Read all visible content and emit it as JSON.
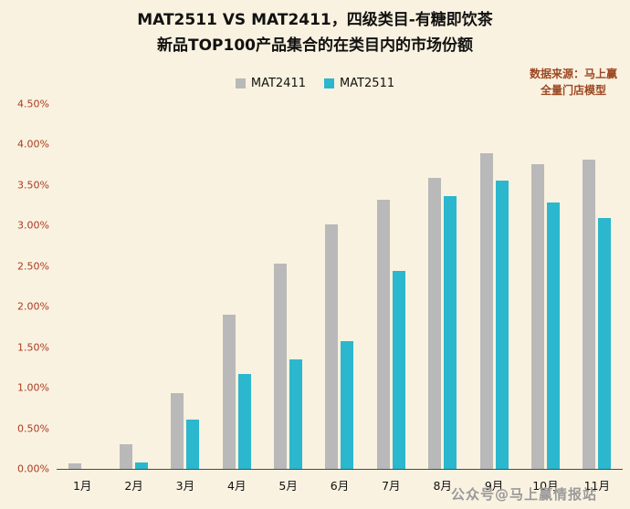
{
  "title": {
    "line1": "MAT2511 VS MAT2411，四级类目-有糖即饮茶",
    "line2": "新品TOP100产品集合的在类目内的市场份额"
  },
  "source": {
    "line1": "数据来源：马上赢",
    "line2": "全量门店模型"
  },
  "legend": [
    {
      "label": "MAT2411",
      "color": "#b9b9b9"
    },
    {
      "label": "MAT2511",
      "color": "#2bb7cd"
    }
  ],
  "watermark": "公众号@马上赢情报站",
  "colors": {
    "background": "#faf2e0",
    "bar_mat2411": "#b9b9b9",
    "bar_mat2511": "#2bb7cd",
    "axis_label": "#aa3a22",
    "source_text": "#9c4722",
    "title_text": "#111111"
  },
  "chart_data": {
    "type": "bar",
    "title": "MAT2511 VS MAT2411，四级类目-有糖即饮茶 新品TOP100产品集合的在类目内的市场份额",
    "categories": [
      "1月",
      "2月",
      "3月",
      "4月",
      "5月",
      "6月",
      "7月",
      "8月",
      "9月",
      "10月",
      "11月"
    ],
    "series": [
      {
        "name": "MAT2411",
        "color": "#b9b9b9",
        "values": [
          0.07,
          0.3,
          0.93,
          1.9,
          2.53,
          3.02,
          3.32,
          3.59,
          3.89,
          3.76,
          3.81
        ]
      },
      {
        "name": "MAT2511",
        "color": "#2bb7cd",
        "values": [
          0.0,
          0.08,
          0.61,
          1.17,
          1.35,
          1.57,
          2.44,
          3.36,
          3.56,
          3.28,
          3.09
        ]
      }
    ],
    "xlabel": "",
    "ylabel": "",
    "ylim": [
      0,
      4.5
    ],
    "yticks": [
      "0.00%",
      "0.50%",
      "1.00%",
      "1.50%",
      "2.00%",
      "2.50%",
      "3.00%",
      "3.50%",
      "4.00%",
      "4.50%"
    ],
    "grid": false,
    "legend_position": "top-center",
    "value_format": "percent"
  }
}
